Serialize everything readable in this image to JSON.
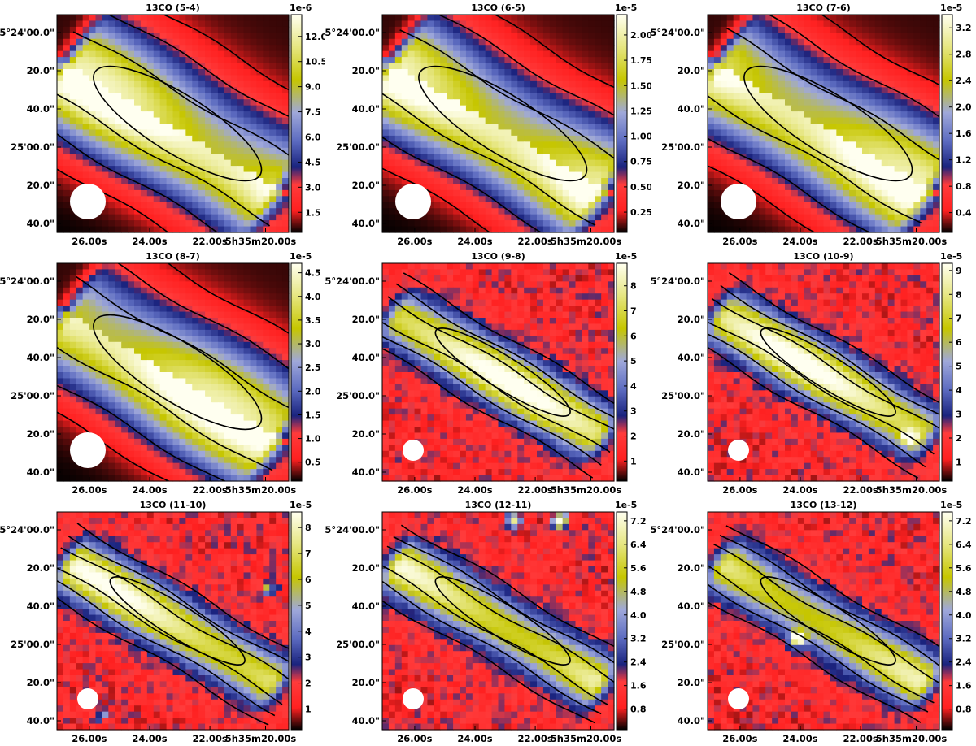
{
  "colorbar_colors": [
    "#000000",
    "#ff2020",
    "#ff3b3b",
    "#1a237e",
    "#5c6bc0",
    "#9fa8da",
    "#c6c600",
    "#e6e680",
    "#fffff0"
  ],
  "chart_data": [
    {
      "type": "heatmap",
      "title": "13CO (5-4)",
      "x_ticks": [
        "26.00s",
        "24.00s",
        "22.00s",
        "5h35m20.00s"
      ],
      "y_ticks": [
        "-5°24'00.0\"",
        "20.0\"",
        "40.0\"",
        "25'00.0\"",
        "20.0\"",
        "40.0\""
      ],
      "colorbar": {
        "exponent": "1e-6",
        "ticks": [
          "1.5",
          "3.0",
          "4.5",
          "6.0",
          "7.5",
          "9.0",
          "10.5",
          "12.0"
        ],
        "vmin": 0.3,
        "vmax": 13.3
      },
      "ridge": {
        "peak_fraction": 0.92,
        "width": "broad"
      },
      "features": [
        "red background top-right",
        "contours: 5"
      ]
    },
    {
      "type": "heatmap",
      "title": "13CO (6-5)",
      "x_ticks": [
        "26.00s",
        "24.00s",
        "22.00s",
        "5h35m20.00s"
      ],
      "y_ticks": [
        "-5°24'00.0\"",
        "20.0\"",
        "40.0\"",
        "25'00.0\"",
        "20.0\"",
        "40.0\""
      ],
      "colorbar": {
        "exponent": "1e-5",
        "ticks": [
          "0.25",
          "0.50",
          "0.75",
          "1.00",
          "1.25",
          "1.50",
          "1.75",
          "2.00"
        ],
        "vmin": 0.05,
        "vmax": 2.2
      },
      "ridge": {
        "peak_fraction": 0.92,
        "width": "broad"
      },
      "features": [
        "red background top-right",
        "contours: 5"
      ]
    },
    {
      "type": "heatmap",
      "title": "13CO (7-6)",
      "x_ticks": [
        "26.00s",
        "24.00s",
        "22.00s",
        "5h35m20.00s"
      ],
      "y_ticks": [
        "-5°24'00.0\"",
        "20.0\"",
        "40.0\"",
        "25'00.0\"",
        "20.0\"",
        "40.0\""
      ],
      "colorbar": {
        "exponent": "1e-5",
        "ticks": [
          "0.4",
          "0.8",
          "1.2",
          "1.6",
          "2.0",
          "2.4",
          "2.8",
          "3.2"
        ],
        "vmin": 0.1,
        "vmax": 3.4
      },
      "ridge": {
        "peak_fraction": 0.9,
        "width": "broad"
      },
      "features": [
        "red background top-right",
        "contours: 5"
      ]
    },
    {
      "type": "heatmap",
      "title": "13CO (8-7)",
      "x_ticks": [
        "26.00s",
        "24.00s",
        "22.00s",
        "5h35m20.00s"
      ],
      "y_ticks": [
        "-5°24'00.0\"",
        "20.0\"",
        "40.0\"",
        "25'00.0\"",
        "20.0\"",
        "40.0\""
      ],
      "colorbar": {
        "exponent": "1e-5",
        "ticks": [
          "0.5",
          "1.0",
          "1.5",
          "2.0",
          "2.5",
          "3.0",
          "3.5",
          "4.0",
          "4.5"
        ],
        "vmin": 0.1,
        "vmax": 4.7
      },
      "ridge": {
        "peak_fraction": 0.9,
        "width": "broad"
      },
      "features": [
        "red background top-right",
        "contours: 5"
      ]
    },
    {
      "type": "heatmap",
      "title": "13CO (9-8)",
      "x_ticks": [
        "26.00s",
        "24.00s",
        "22.00s",
        "5h35m20.00s"
      ],
      "y_ticks": [
        "-5°24'00.0\"",
        "20.0\"",
        "40.0\"",
        "25'00.0\"",
        "20.0\"",
        "40.0\""
      ],
      "colorbar": {
        "exponent": "1e-5",
        "ticks": [
          "1",
          "2",
          "3",
          "4",
          "5",
          "6",
          "7",
          "8"
        ],
        "vmin": 0.2,
        "vmax": 8.9
      },
      "ridge": {
        "peak_fraction": 0.88,
        "width": "narrow"
      },
      "features": [
        "noisy red background",
        "contours: 4"
      ]
    },
    {
      "type": "heatmap",
      "title": "13CO (10-9)",
      "x_ticks": [
        "26.00s",
        "24.00s",
        "22.00s",
        "5h35m20.00s"
      ],
      "y_ticks": [
        "-5°24'00.0\"",
        "20.0\"",
        "40.0\"",
        "25'00.0\"",
        "20.0\"",
        "40.0\""
      ],
      "colorbar": {
        "exponent": "1e-5",
        "ticks": [
          "1",
          "2",
          "3",
          "4",
          "5",
          "6",
          "7",
          "8",
          "9"
        ],
        "vmin": 0.2,
        "vmax": 9.3
      },
      "ridge": {
        "peak_fraction": 0.88,
        "width": "narrow"
      },
      "features": [
        "noisy red background",
        "compact source near right end of ridge",
        "contours: 4"
      ]
    },
    {
      "type": "heatmap",
      "title": "13CO (11-10)",
      "x_ticks": [
        "26.00s",
        "24.00s",
        "22.00s",
        "5h35m20.00s"
      ],
      "y_ticks": [
        "-5°24'00.0\"",
        "20.0\"",
        "40.0\"",
        "25'00.0\"",
        "20.0\"",
        "40.0\""
      ],
      "colorbar": {
        "exponent": "1e-5",
        "ticks": [
          "1",
          "2",
          "3",
          "4",
          "5",
          "6",
          "7",
          "8"
        ],
        "vmin": 0.2,
        "vmax": 8.6
      },
      "ridge": {
        "peak_fraction": 0.85,
        "width": "narrow"
      },
      "features": [
        "noisy red background",
        "compact source at right edge",
        "compact source below beam",
        "contours: 4"
      ]
    },
    {
      "type": "heatmap",
      "title": "13CO (12-11)",
      "x_ticks": [
        "26.00s",
        "24.00s",
        "22.00s",
        "5h35m20.00s"
      ],
      "y_ticks": [
        "-5°24'00.0\"",
        "20.0\"",
        "40.0\"",
        "25'00.0\"",
        "20.0\"",
        "40.0\""
      ],
      "colorbar": {
        "exponent": "1e-5",
        "ticks": [
          "0.8",
          "1.6",
          "2.4",
          "3.2",
          "4.0",
          "4.8",
          "5.6",
          "6.4",
          "7.2"
        ],
        "vmin": 0.1,
        "vmax": 7.5
      },
      "ridge": {
        "peak_fraction": 0.8,
        "width": "narrow"
      },
      "features": [
        "noisy red background",
        "compact sources at top edge",
        "contours: 4"
      ]
    },
    {
      "type": "heatmap",
      "title": "13CO (13-12)",
      "x_ticks": [
        "26.00s",
        "24.00s",
        "22.00s",
        "5h35m20.00s"
      ],
      "y_ticks": [
        "-5°24'00.0\"",
        "20.0\"",
        "40.0\"",
        "25'00.0\"",
        "20.0\"",
        "40.0\""
      ],
      "colorbar": {
        "exponent": "1e-5",
        "ticks": [
          "0.8",
          "1.6",
          "2.4",
          "3.2",
          "4.0",
          "4.8",
          "5.6",
          "6.4",
          "7.2"
        ],
        "vmin": 0.1,
        "vmax": 7.5
      },
      "ridge": {
        "peak_fraction": 0.75,
        "width": "narrow"
      },
      "features": [
        "noisy red background",
        "bright compact source left of centre",
        "contours: 3"
      ]
    }
  ]
}
